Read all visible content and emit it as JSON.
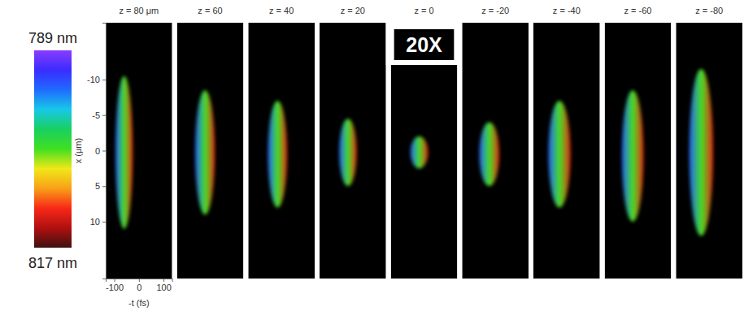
{
  "chart_data": {
    "type": "heatmap",
    "x_label": "-t (fs)",
    "y_label": "x (μm)",
    "xlim": [
      -135,
      135
    ],
    "ylim": [
      -18,
      18
    ],
    "xticks": [
      -100,
      0,
      100
    ],
    "yticks": [
      -10,
      -5,
      0,
      5,
      10
    ],
    "colorbar": {
      "range": [
        789,
        817
      ],
      "ticks": [
        {
          "value": 789,
          "label": "789 nm"
        },
        {
          "value": 817,
          "label": "817 nm"
        }
      ]
    },
    "beam_wavelengths": [
      794,
      803,
      812
    ],
    "panels": [
      {
        "title": "z = 80 μm",
        "t_range": [
          -95,
          -25
        ],
        "x_range": [
          -10.5,
          11
        ]
      },
      {
        "title": "z = 60",
        "t_range": [
          -61,
          19
        ],
        "x_range": [
          -8.5,
          9
        ]
      },
      {
        "title": "z = 40",
        "t_range": [
          -55,
          23
        ],
        "x_range": [
          -7,
          8
        ]
      },
      {
        "title": "z = 20",
        "t_range": [
          -55,
          16
        ],
        "x_range": [
          -4.5,
          5
        ]
      },
      {
        "title": "z = 0",
        "t_range": [
          -55,
          16
        ],
        "x_range": [
          -2,
          2.5
        ],
        "annotation": "20X"
      },
      {
        "title": "z = -20",
        "t_range": [
          -65,
          16
        ],
        "x_range": [
          -4,
          5
        ]
      },
      {
        "title": "z = -40",
        "t_range": [
          -74,
          16
        ],
        "x_range": [
          -7,
          8
        ]
      },
      {
        "title": "z = -60",
        "t_range": [
          -65,
          23
        ],
        "x_range": [
          -8.5,
          10
        ]
      },
      {
        "title": "z = -80",
        "t_range": [
          -81,
          16
        ],
        "x_range": [
          -11.5,
          12
        ]
      }
    ]
  }
}
